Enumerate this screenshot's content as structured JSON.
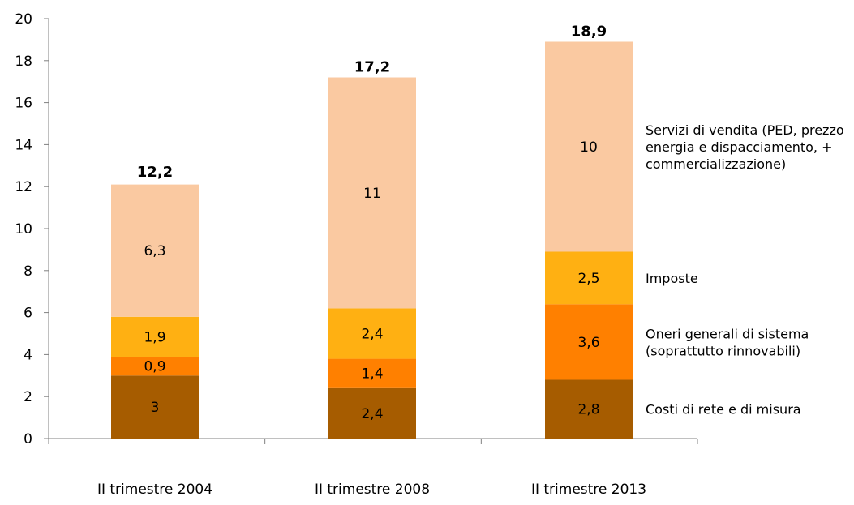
{
  "chart_data": {
    "type": "bar",
    "stacked": true,
    "categories": [
      "II trimestre 2004",
      "II trimestre 2008",
      "II trimestre 2013"
    ],
    "series": [
      {
        "name": "Costi di rete e di misura",
        "values": [
          3,
          2.4,
          2.8
        ],
        "labels": [
          "3",
          "2,4",
          "2,8"
        ],
        "color": "#A65C00"
      },
      {
        "name": "Oneri generali di sistema (soprattutto rinnovabili)",
        "legend_lines": [
          "Oneri generali di sistema",
          "(soprattutto rinnovabili)"
        ],
        "values": [
          0.9,
          1.4,
          3.6
        ],
        "labels": [
          "0,9",
          "1,4",
          "3,6"
        ],
        "color": "#FF8000"
      },
      {
        "name": "Imposte",
        "legend_lines": [
          "Imposte"
        ],
        "values": [
          1.9,
          2.4,
          2.5
        ],
        "labels": [
          "1,9",
          "2,4",
          "2,5"
        ],
        "color": "#FFB012"
      },
      {
        "name": "Servizi di vendita (PED, prezzo energia e dispacciamento, + commercializzazione)",
        "legend_lines": [
          "Servizi di vendita (PED, prezzo",
          "energia e dispacciamento, +",
          "commercializzazione)"
        ],
        "values": [
          6.3,
          11,
          10
        ],
        "labels": [
          "6,3",
          "11",
          "10"
        ],
        "color": "#FAC9A1"
      }
    ],
    "totals": [
      12.2,
      17.2,
      18.9
    ],
    "total_labels": [
      "12,2",
      "17,2",
      "18,9"
    ],
    "ylim": [
      0,
      20
    ],
    "y_ticks": [
      0,
      2,
      4,
      6,
      8,
      10,
      12,
      14,
      16,
      18,
      20
    ],
    "y_tick_labels": [
      "0",
      "2",
      "4",
      "6",
      "8",
      "10",
      "12",
      "14",
      "16",
      "18",
      "20"
    ],
    "grid": false,
    "legend": "right, aligned with segments",
    "title": "",
    "xlabel": "",
    "ylabel": ""
  }
}
